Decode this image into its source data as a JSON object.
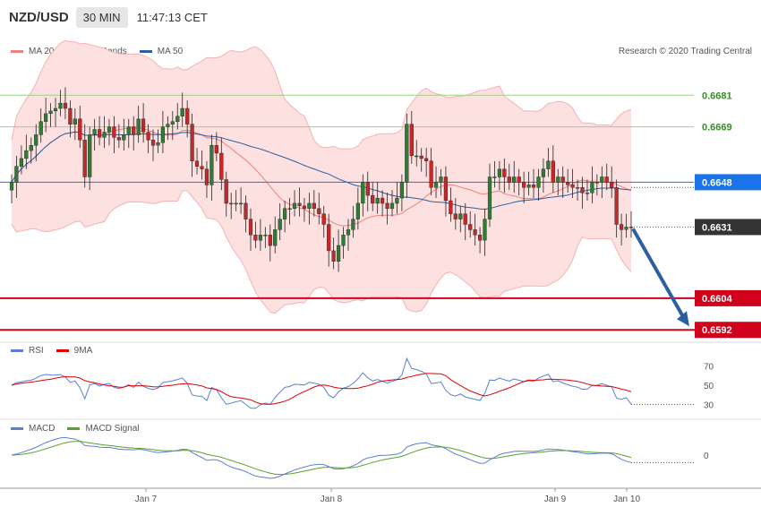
{
  "header": {
    "symbol": "NZD/USD",
    "timeframe": "30 MIN",
    "time": "11:47:13 CET"
  },
  "legend_main": [
    {
      "label": "MA 20 + Bollinger Bands",
      "color": "#f08080"
    },
    {
      "label": "MA 50",
      "color": "#2b5fa0"
    }
  ],
  "copyright": "Research © 2020 Trading Central",
  "colors": {
    "up": "#2e7d32",
    "down": "#c62828",
    "band": "#fde0e0",
    "ma20": "#f08080",
    "ma50": "#2b5fa0",
    "resistance": "#9dd08a",
    "support": "#d0021b",
    "pivot": "#1a73e8",
    "arrow": "#2b5fa0",
    "rsi": "#5b7fd6",
    "rsi_ma": "#e00000",
    "macd": "#5b7fd6",
    "macd_signal": "#5aa02c"
  },
  "price_levels": [
    {
      "label": "0.6681",
      "kind": "resistance"
    },
    {
      "label": "0.6669",
      "kind": "resistance"
    },
    {
      "label": "0.6648",
      "kind": "pivot"
    },
    {
      "label": "0.6631",
      "kind": "current"
    },
    {
      "label": "0.6604",
      "kind": "support"
    },
    {
      "label": "0.6592",
      "kind": "support"
    }
  ],
  "rsi_legend": [
    {
      "label": "RSI",
      "color": "#5b7fd6"
    },
    {
      "label": "9MA",
      "color": "#e00000"
    }
  ],
  "rsi_levels": [
    "70",
    "50",
    "30"
  ],
  "macd_legend": [
    {
      "label": "MACD",
      "color": "#5b7fd6"
    },
    {
      "label": "MACD Signal",
      "color": "#5aa02c"
    }
  ],
  "macd_levels": [
    "0"
  ],
  "x_labels": [
    "Jan 7",
    "Jan 8",
    "Jan 9",
    "Jan 10"
  ],
  "chart_data": {
    "type": "candlestick",
    "y_range": [
      0.6588,
      0.6694
    ],
    "candles_close": [
      0.6648,
      0.6654,
      0.6657,
      0.666,
      0.6662,
      0.6666,
      0.6671,
      0.6674,
      0.6675,
      0.6676,
      0.6678,
      0.6676,
      0.667,
      0.6672,
      0.6664,
      0.665,
      0.6666,
      0.6668,
      0.6665,
      0.6667,
      0.6669,
      0.6665,
      0.6664,
      0.6666,
      0.6669,
      0.6666,
      0.6672,
      0.6667,
      0.6664,
      0.6662,
      0.6663,
      0.6669,
      0.667,
      0.6671,
      0.6673,
      0.6676,
      0.667,
      0.6656,
      0.6654,
      0.6653,
      0.6647,
      0.6662,
      0.6659,
      0.6649,
      0.664,
      0.664,
      0.664,
      0.664,
      0.6634,
      0.6628,
      0.6626,
      0.6628,
      0.6628,
      0.6624,
      0.663,
      0.6634,
      0.6638,
      0.6638,
      0.664,
      0.6639,
      0.6638,
      0.664,
      0.6638,
      0.6636,
      0.6632,
      0.6622,
      0.6618,
      0.6624,
      0.6628,
      0.663,
      0.6634,
      0.664,
      0.6648,
      0.6643,
      0.664,
      0.6642,
      0.664,
      0.6638,
      0.664,
      0.6642,
      0.6648,
      0.667,
      0.6658,
      0.6658,
      0.6657,
      0.6656,
      0.6646,
      0.6648,
      0.665,
      0.6641,
      0.6636,
      0.6634,
      0.6636,
      0.6632,
      0.663,
      0.6628,
      0.6626,
      0.6634,
      0.665,
      0.665,
      0.6653,
      0.665,
      0.6648,
      0.665,
      0.6648,
      0.6646,
      0.6647,
      0.6646,
      0.665,
      0.6653,
      0.6656,
      0.6648,
      0.665,
      0.6648,
      0.6647,
      0.6646,
      0.6646,
      0.6644,
      0.6644,
      0.6648,
      0.6648,
      0.665,
      0.6648,
      0.6646,
      0.6632,
      0.663,
      0.6631,
      0.6631
    ],
    "rsi": {
      "levels": [
        70,
        50,
        30
      ],
      "last": 30
    },
    "macd": {
      "levels": [
        0
      ]
    }
  }
}
